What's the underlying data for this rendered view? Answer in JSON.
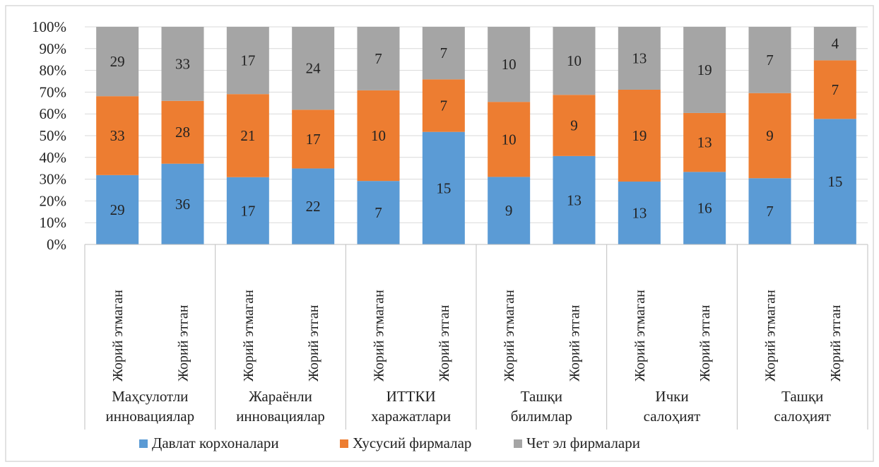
{
  "chart_data": {
    "type": "bar",
    "stacked": "percent",
    "groups": [
      {
        "label_lines": [
          "Маҳсулотли",
          "инновациялар"
        ]
      },
      {
        "label_lines": [
          "Жараёнли",
          "инновациялар"
        ]
      },
      {
        "label_lines": [
          "ИТТКИ",
          "харажатлари"
        ]
      },
      {
        "label_lines": [
          "Ташқи",
          "билимлар"
        ]
      },
      {
        "label_lines": [
          "Ички",
          "салоҳият"
        ]
      },
      {
        "label_lines": [
          "Ташқи",
          "салоҳият"
        ]
      }
    ],
    "categories": [
      "Жорий этмаган",
      "Жорий этган",
      "Жорий этмаган",
      "Жорий этган",
      "Жорий этмаган",
      "Жорий этган",
      "Жорий этмаган",
      "Жорий этган",
      "Жорий этмаган",
      "Жорий этган",
      "Жорий этмаган",
      "Жорий этган"
    ],
    "series": [
      {
        "name": "Давлат корхоналари",
        "color": "#5b9bd5",
        "values": [
          29,
          36,
          17,
          22,
          7,
          15,
          9,
          13,
          13,
          16,
          7,
          15
        ]
      },
      {
        "name": "Хусусий фирмалар",
        "color": "#ed7d31",
        "values": [
          33,
          28,
          21,
          17,
          10,
          7,
          10,
          9,
          19,
          13,
          9,
          7
        ]
      },
      {
        "name": "Чет эл фирмалари",
        "color": "#a5a5a5",
        "values": [
          29,
          33,
          17,
          24,
          7,
          7,
          10,
          10,
          13,
          19,
          7,
          4
        ]
      }
    ],
    "yticks": [
      "0%",
      "10%",
      "20%",
      "30%",
      "40%",
      "50%",
      "60%",
      "70%",
      "80%",
      "90%",
      "100%"
    ],
    "ylim": [
      0,
      100
    ],
    "grid": true,
    "legend_position": "bottom"
  }
}
